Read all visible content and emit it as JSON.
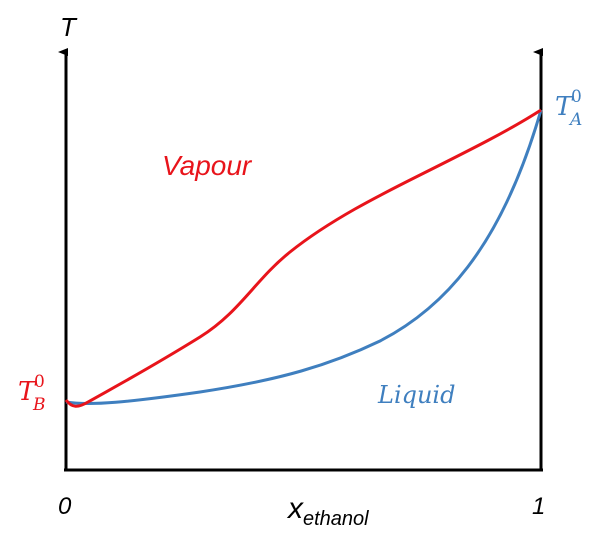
{
  "axes": {
    "y_label": "T",
    "x_label_main": "x",
    "x_label_sub": "ethanol",
    "x_tick_0": "0",
    "x_tick_1": "1"
  },
  "left_temp_label": {
    "base": "T",
    "sub": "B",
    "sup": "0"
  },
  "right_temp_label": {
    "base": "T",
    "sub": "A",
    "sup": "0"
  },
  "regions": {
    "vapour": "Vapour",
    "liquid": "Liquid"
  },
  "colors": {
    "vapour_curve": "#e8141b",
    "liquid_curve": "#3f7fbf",
    "axis": "#000000"
  }
}
